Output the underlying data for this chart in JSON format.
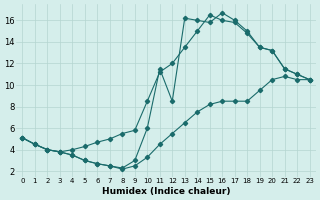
{
  "xlabel": "Humidex (Indice chaleur)",
  "bg_color": "#d5eeeb",
  "line_color": "#1a6b6b",
  "grid_color": "#b5d5d0",
  "xlim": [
    -0.5,
    23.5
  ],
  "ylim": [
    1.5,
    17.5
  ],
  "xticks": [
    0,
    1,
    2,
    3,
    4,
    5,
    6,
    7,
    8,
    9,
    10,
    11,
    12,
    13,
    14,
    15,
    16,
    17,
    18,
    19,
    20,
    21,
    22,
    23
  ],
  "yticks": [
    2,
    4,
    6,
    8,
    10,
    12,
    14,
    16
  ],
  "line1_x": [
    0,
    1,
    2,
    3,
    4,
    5,
    6,
    7,
    8,
    9,
    10,
    11,
    12,
    13,
    14,
    15,
    16,
    17,
    18,
    19,
    20,
    21,
    22,
    23
  ],
  "line1_y": [
    5.1,
    4.5,
    4.0,
    3.8,
    4.0,
    4.3,
    4.7,
    5.0,
    5.5,
    5.8,
    8.5,
    11.2,
    12.0,
    13.5,
    15.0,
    16.5,
    16.0,
    15.8,
    14.8,
    13.5,
    13.2,
    11.5,
    11.0,
    10.5
  ],
  "line2_x": [
    0,
    1,
    2,
    3,
    4,
    5,
    6,
    7,
    8,
    9,
    10,
    11,
    12,
    13,
    14,
    15,
    16,
    17,
    18,
    19,
    20,
    21,
    22,
    23
  ],
  "line2_y": [
    5.1,
    4.5,
    4.0,
    3.8,
    3.5,
    3.0,
    2.7,
    2.5,
    2.3,
    3.0,
    6.0,
    11.5,
    8.5,
    16.2,
    16.0,
    15.8,
    16.7,
    16.0,
    15.0,
    13.5,
    13.2,
    11.5,
    11.0,
    10.5
  ],
  "line3_x": [
    0,
    1,
    2,
    3,
    4,
    5,
    6,
    7,
    8,
    9,
    10,
    11,
    12,
    13,
    14,
    15,
    16,
    17,
    18,
    19,
    20,
    21,
    22,
    23
  ],
  "line3_y": [
    5.1,
    4.5,
    4.0,
    3.8,
    3.5,
    3.0,
    2.7,
    2.5,
    2.2,
    2.5,
    3.3,
    4.5,
    5.5,
    6.5,
    7.5,
    8.2,
    8.5,
    8.5,
    8.5,
    9.5,
    10.5,
    10.8,
    10.5,
    10.5
  ]
}
